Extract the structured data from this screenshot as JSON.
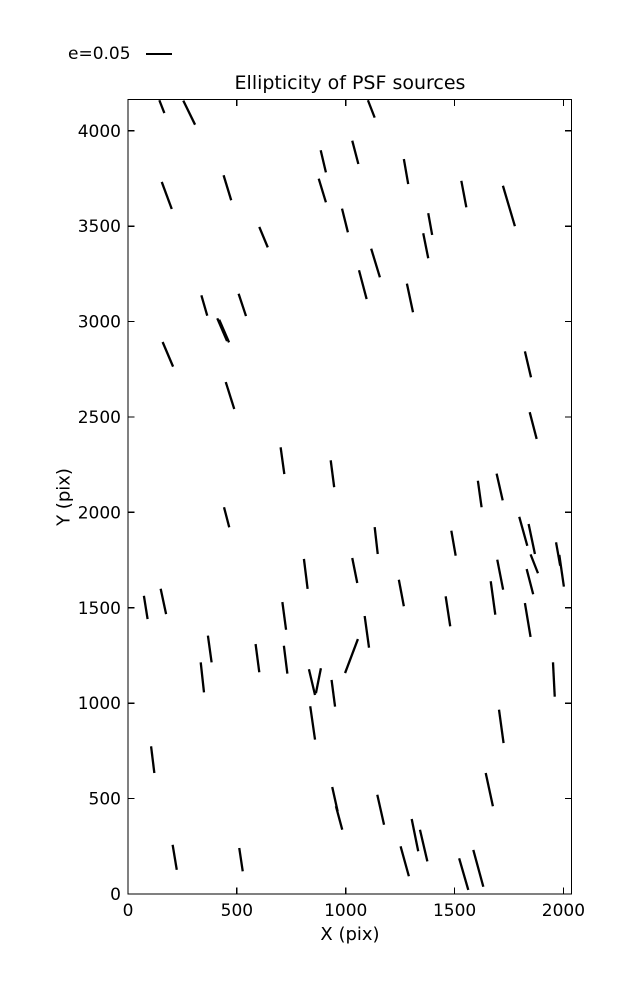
{
  "chart_data": {
    "type": "scatter",
    "subtype": "ellipticity-whisker-map",
    "title": "Ellipticity of PSF sources",
    "xlabel": "X (pix)",
    "ylabel": "Y (pix)",
    "legend_label": "e=0.05",
    "legend_reference_e": 0.05,
    "legend_position": "top-left-above-axes",
    "xlim": [
      0,
      2037
    ],
    "ylim": [
      0,
      4164
    ],
    "x_ticks": [
      0,
      500,
      1000,
      1500,
      2000
    ],
    "y_ticks": [
      0,
      500,
      1000,
      1500,
      2000,
      2500,
      3000,
      3500,
      4000
    ],
    "grid": false,
    "whisker_color": "#000000",
    "background_color": "#ffffff",
    "whiskers": [
      [
        144,
        4160,
        167,
        4093
      ],
      [
        254,
        4158,
        308,
        4032
      ],
      [
        155,
        3732,
        201,
        3590
      ],
      [
        439,
        3767,
        474,
        3636
      ],
      [
        885,
        3898,
        909,
        3782
      ],
      [
        876,
        3749,
        909,
        3625
      ],
      [
        983,
        3592,
        1010,
        3468
      ],
      [
        603,
        3496,
        642,
        3389
      ],
      [
        337,
        3138,
        364,
        3031
      ],
      [
        508,
        3146,
        542,
        3029
      ],
      [
        410,
        3017,
        455,
        2898
      ],
      [
        419,
        3010,
        464,
        2891
      ],
      [
        159,
        2893,
        207,
        2764
      ],
      [
        1102,
        4160,
        1133,
        4069
      ],
      [
        1030,
        3948,
        1058,
        3826
      ],
      [
        1267,
        3852,
        1287,
        3721
      ],
      [
        1531,
        3738,
        1554,
        3599
      ],
      [
        1722,
        3712,
        1777,
        3500
      ],
      [
        1379,
        3568,
        1397,
        3454
      ],
      [
        1356,
        3463,
        1379,
        3332
      ],
      [
        1117,
        3382,
        1157,
        3232
      ],
      [
        1061,
        3269,
        1096,
        3118
      ],
      [
        1281,
        3199,
        1309,
        3049
      ],
      [
        1823,
        2844,
        1851,
        2708
      ],
      [
        449,
        2683,
        488,
        2542
      ],
      [
        701,
        2341,
        718,
        2201
      ],
      [
        931,
        2273,
        947,
        2132
      ],
      [
        441,
        2027,
        465,
        1922
      ],
      [
        808,
        1756,
        825,
        1599
      ],
      [
        73,
        1563,
        90,
        1441
      ],
      [
        150,
        1600,
        175,
        1467
      ],
      [
        709,
        1530,
        726,
        1385
      ],
      [
        1845,
        2525,
        1877,
        2385
      ],
      [
        1607,
        2166,
        1624,
        2027
      ],
      [
        1693,
        2203,
        1721,
        2063
      ],
      [
        1133,
        1923,
        1147,
        1782
      ],
      [
        1485,
        1904,
        1505,
        1773
      ],
      [
        1797,
        1977,
        1834,
        1825
      ],
      [
        1840,
        1939,
        1869,
        1782
      ],
      [
        1849,
        1780,
        1883,
        1681
      ],
      [
        1831,
        1703,
        1861,
        1571
      ],
      [
        1823,
        1525,
        1849,
        1347
      ],
      [
        1966,
        1843,
        1985,
        1721
      ],
      [
        1981,
        1777,
        2002,
        1611
      ],
      [
        1030,
        1761,
        1053,
        1630
      ],
      [
        1244,
        1647,
        1267,
        1508
      ],
      [
        1459,
        1560,
        1480,
        1403
      ],
      [
        1087,
        1457,
        1107,
        1291
      ],
      [
        1696,
        1752,
        1723,
        1595
      ],
      [
        1666,
        1639,
        1687,
        1464
      ],
      [
        367,
        1354,
        384,
        1214
      ],
      [
        334,
        1214,
        349,
        1057
      ],
      [
        586,
        1310,
        603,
        1162
      ],
      [
        716,
        1301,
        732,
        1155
      ],
      [
        831,
        1178,
        859,
        1043
      ],
      [
        886,
        1183,
        863,
        1052
      ],
      [
        935,
        1122,
        951,
        982
      ],
      [
        1056,
        1336,
        997,
        1158
      ],
      [
        837,
        984,
        859,
        809
      ],
      [
        106,
        774,
        121,
        634
      ],
      [
        938,
        561,
        963,
        433
      ],
      [
        955,
        460,
        984,
        337
      ],
      [
        205,
        258,
        224,
        127
      ],
      [
        511,
        241,
        527,
        119
      ],
      [
        1952,
        1214,
        1960,
        1034
      ],
      [
        1704,
        966,
        1725,
        791
      ],
      [
        1643,
        634,
        1676,
        460
      ],
      [
        1145,
        520,
        1176,
        363
      ],
      [
        1303,
        393,
        1333,
        224
      ],
      [
        1341,
        337,
        1375,
        171
      ],
      [
        1252,
        250,
        1290,
        93
      ],
      [
        1521,
        187,
        1563,
        21
      ],
      [
        1586,
        231,
        1632,
        38
      ]
    ]
  }
}
